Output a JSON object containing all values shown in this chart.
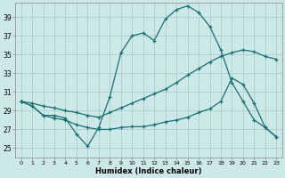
{
  "xlabel": "Humidex (Indice chaleur)",
  "bg_color": "#cce8e8",
  "grid_color": "#aad0d0",
  "line_color": "#1a7070",
  "x_ticks": [
    0,
    1,
    2,
    3,
    4,
    5,
    6,
    7,
    8,
    9,
    10,
    11,
    12,
    13,
    14,
    15,
    16,
    17,
    18,
    19,
    20,
    21,
    22,
    23
  ],
  "y_ticks": [
    25,
    27,
    29,
    31,
    33,
    35,
    37,
    39
  ],
  "xlim": [
    -0.5,
    23.5
  ],
  "ylim": [
    24.0,
    40.5
  ],
  "line1_x": [
    0,
    1,
    2,
    3,
    4,
    5,
    6,
    7,
    8,
    9,
    10,
    11,
    12,
    13,
    14,
    15,
    16,
    17,
    18,
    19,
    20,
    21,
    22,
    23
  ],
  "line1_y": [
    30.0,
    29.5,
    28.5,
    28.5,
    28.2,
    26.5,
    25.2,
    27.2,
    30.5,
    35.2,
    37.0,
    37.3,
    36.5,
    38.8,
    39.8,
    40.2,
    39.5,
    38.0,
    35.5,
    32.0,
    30.0,
    28.0,
    27.2,
    26.2
  ],
  "line2_x": [
    0,
    1,
    2,
    3,
    4,
    5,
    6,
    7,
    8,
    9,
    10,
    11,
    12,
    13,
    14,
    15,
    16,
    17,
    18,
    19,
    20,
    21,
    22,
    23
  ],
  "line2_y": [
    30.0,
    29.8,
    29.5,
    29.3,
    29.0,
    28.8,
    28.5,
    28.3,
    28.8,
    29.3,
    29.8,
    30.3,
    30.8,
    31.3,
    32.0,
    32.8,
    33.5,
    34.2,
    34.8,
    35.2,
    35.5,
    35.3,
    34.8,
    34.5
  ],
  "line3_x": [
    0,
    1,
    2,
    3,
    4,
    5,
    6,
    7,
    8,
    9,
    10,
    11,
    12,
    13,
    14,
    15,
    16,
    17,
    18,
    19,
    20,
    21,
    22,
    23
  ],
  "line3_y": [
    30.0,
    29.5,
    28.5,
    28.2,
    28.0,
    27.5,
    27.2,
    27.0,
    27.0,
    27.2,
    27.3,
    27.3,
    27.5,
    27.8,
    28.0,
    28.3,
    28.8,
    29.2,
    30.0,
    32.5,
    31.8,
    29.8,
    27.2,
    26.2
  ]
}
